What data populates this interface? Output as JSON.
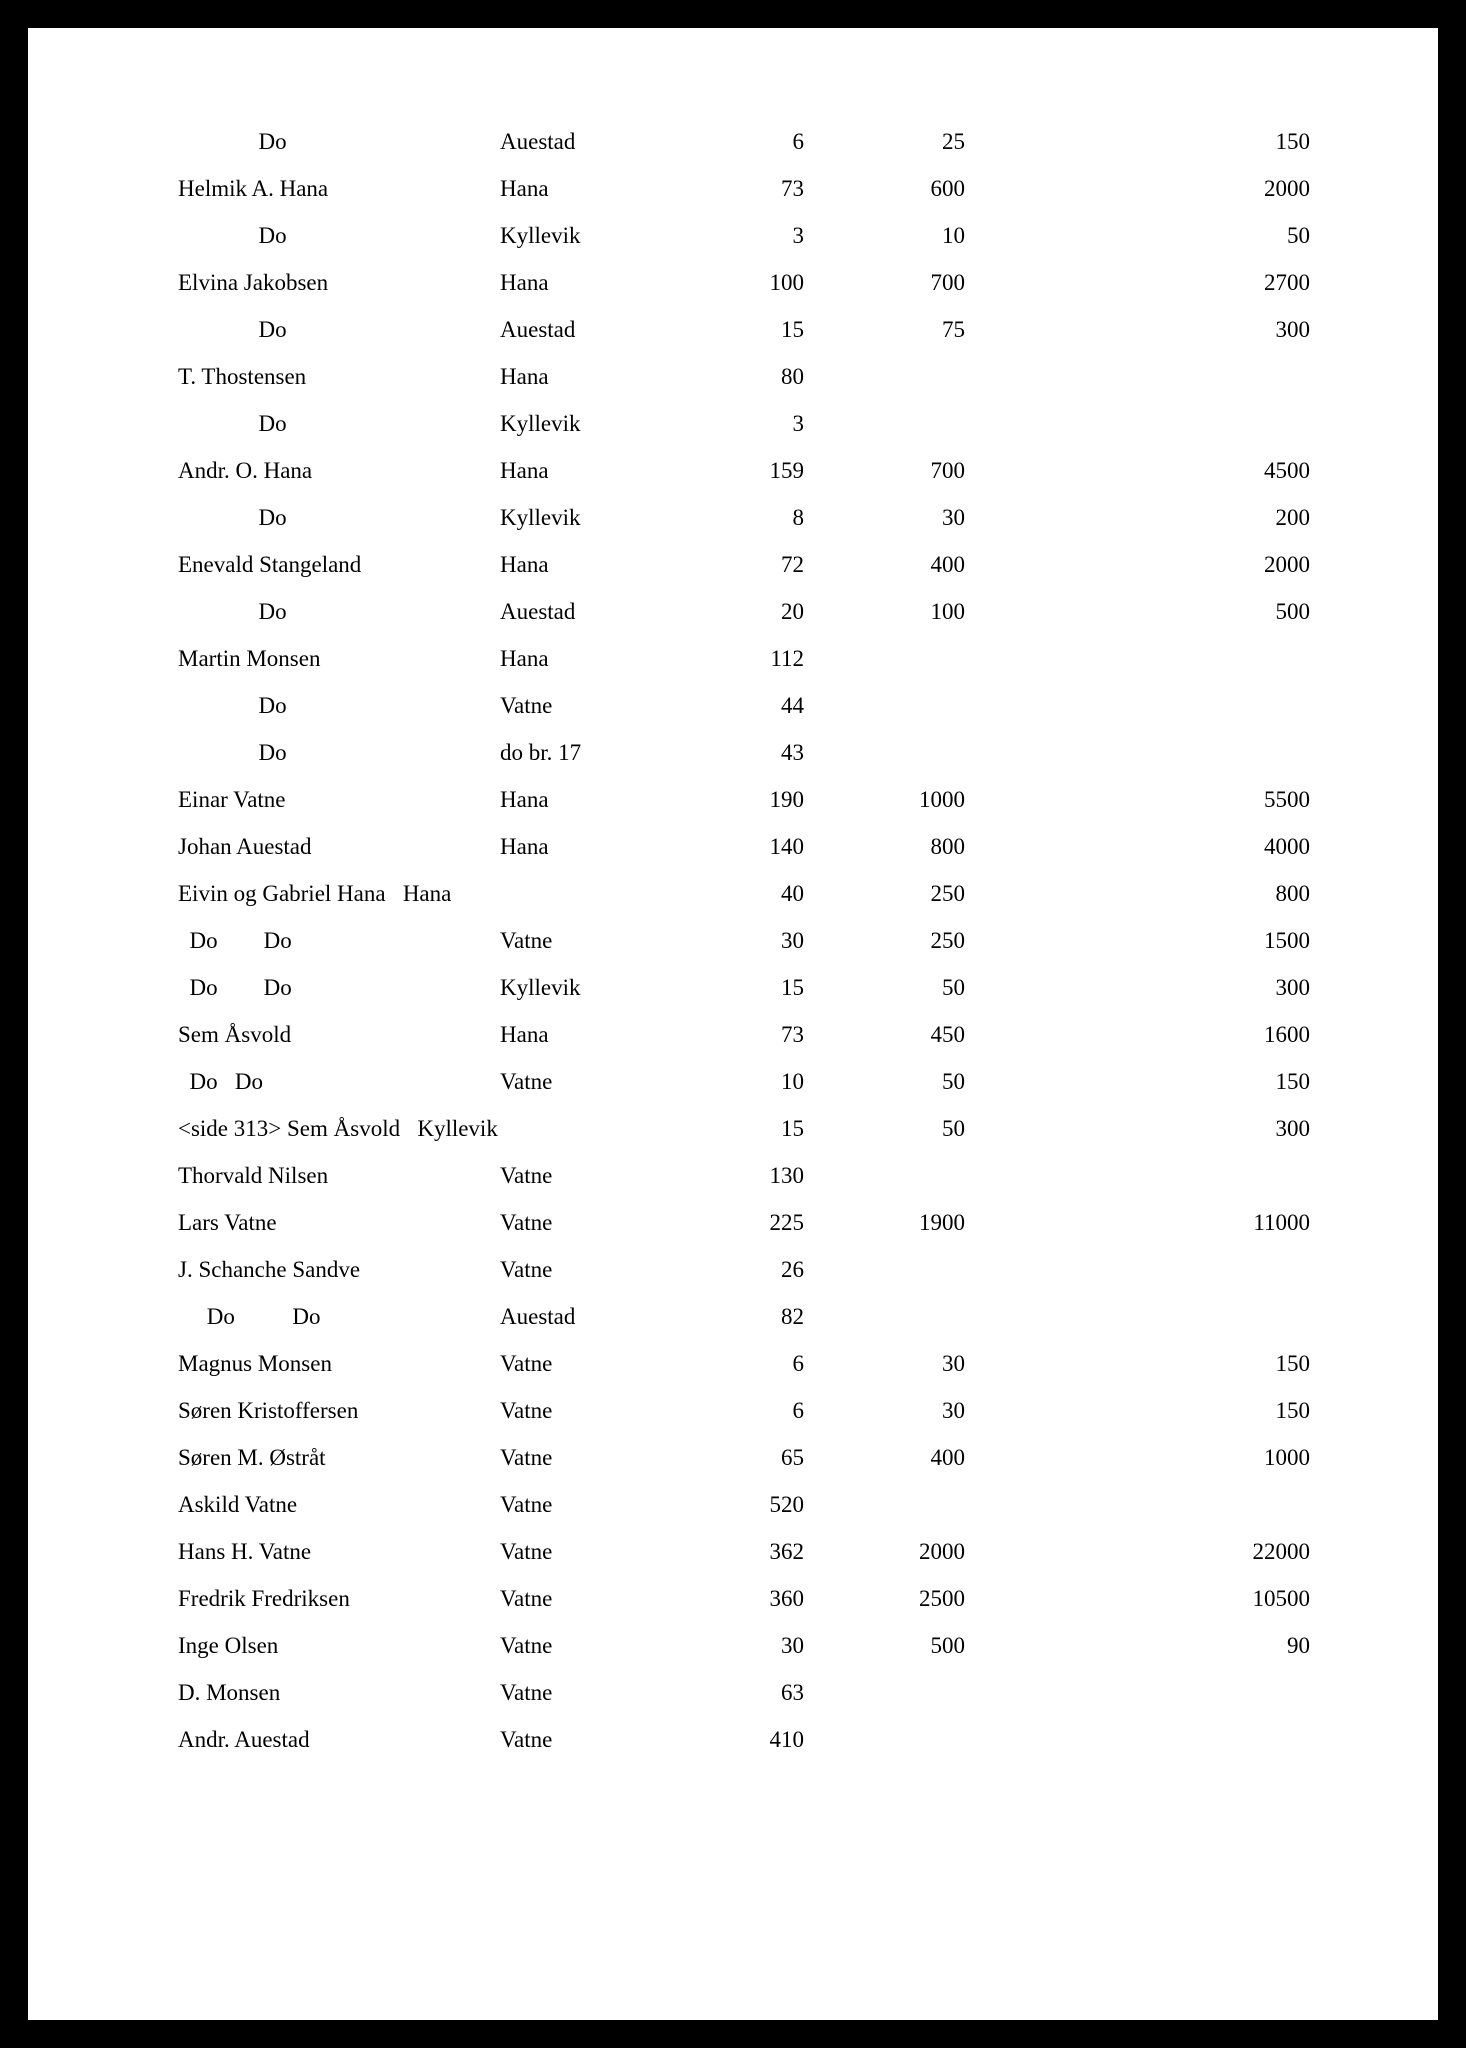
{
  "page": {
    "background_color": "#000000",
    "paper_color": "#ffffff",
    "font_family": "Times New Roman",
    "base_fontsize_pt": 17
  },
  "table": {
    "columns": [
      "name",
      "place",
      "v1",
      "v2",
      "v3"
    ],
    "col_widths_pct": [
      28,
      16,
      12,
      14,
      30
    ],
    "alignments": [
      "left",
      "left",
      "right",
      "right",
      "right"
    ],
    "rows": [
      {
        "name": "              Do",
        "place": "Auestad",
        "v1": "6",
        "v2": "25",
        "v3": "150"
      },
      {
        "name": "Helmik A. Hana",
        "place": "Hana",
        "v1": "73",
        "v2": "600",
        "v3": "2000"
      },
      {
        "name": "              Do",
        "place": "Kyllevik",
        "v1": "3",
        "v2": "10",
        "v3": "50"
      },
      {
        "name": "Elvina Jakobsen",
        "place": "Hana",
        "v1": "100",
        "v2": "700",
        "v3": "2700"
      },
      {
        "name": "              Do",
        "place": "Auestad",
        "v1": "15",
        "v2": "75",
        "v3": "300"
      },
      {
        "name": "T. Thostensen",
        "place": "Hana",
        "v1": "80",
        "v2": "",
        "v3": ""
      },
      {
        "name": "              Do",
        "place": "Kyllevik",
        "v1": "3",
        "v2": "",
        "v3": ""
      },
      {
        "name": "Andr. O. Hana",
        "place": "Hana",
        "v1": "159",
        "v2": "700",
        "v3": "4500"
      },
      {
        "name": "              Do",
        "place": "Kyllevik",
        "v1": "8",
        "v2": "30",
        "v3": "200"
      },
      {
        "name": "Enevald Stangeland",
        "place": "Hana",
        "v1": "72",
        "v2": "400",
        "v3": "2000"
      },
      {
        "name": "              Do",
        "place": "Auestad",
        "v1": "20",
        "v2": "100",
        "v3": "500"
      },
      {
        "name": "Martin Monsen",
        "place": "Hana",
        "v1": "112",
        "v2": "",
        "v3": ""
      },
      {
        "name": "              Do",
        "place": "Vatne",
        "v1": "44",
        "v2": "",
        "v3": ""
      },
      {
        "name": "              Do",
        "place": "do br. 17",
        "v1": "43",
        "v2": "",
        "v3": ""
      },
      {
        "name": "Einar Vatne",
        "place": "Hana",
        "v1": "190",
        "v2": "1000",
        "v3": "5500"
      },
      {
        "name": "Johan Auestad",
        "place": "Hana",
        "v1": "140",
        "v2": "800",
        "v3": "4000"
      },
      {
        "name": "Eivin og Gabriel Hana   Hana",
        "place": "",
        "v1": "40",
        "v2": "250",
        "v3": "800"
      },
      {
        "name": "  Do        Do",
        "place": "Vatne",
        "v1": "30",
        "v2": "250",
        "v3": "1500"
      },
      {
        "name": "  Do        Do",
        "place": "Kyllevik",
        "v1": "15",
        "v2": "50",
        "v3": "300"
      },
      {
        "name": "Sem Åsvold",
        "place": "Hana",
        "v1": "73",
        "v2": "450",
        "v3": "1600"
      },
      {
        "name": "  Do   Do",
        "place": "Vatne",
        "v1": "10",
        "v2": "50",
        "v3": "150"
      },
      {
        "name": "<side 313> Sem Åsvold   Kyllevik",
        "place": "",
        "v1": "15",
        "v2": "50",
        "v3": "300"
      },
      {
        "name": "Thorvald Nilsen",
        "place": "Vatne",
        "v1": "130",
        "v2": "",
        "v3": ""
      },
      {
        "name": "Lars Vatne",
        "place": "Vatne",
        "v1": "225",
        "v2": "1900",
        "v3": "11000"
      },
      {
        "name": "J. Schanche Sandve",
        "place": "Vatne",
        "v1": "26",
        "v2": "",
        "v3": ""
      },
      {
        "name": "     Do          Do",
        "place": "Auestad",
        "v1": "82",
        "v2": "",
        "v3": ""
      },
      {
        "name": "Magnus Monsen",
        "place": "Vatne",
        "v1": "6",
        "v2": "30",
        "v3": "150"
      },
      {
        "name": "Søren Kristoffersen",
        "place": "Vatne",
        "v1": "6",
        "v2": "30",
        "v3": "150"
      },
      {
        "name": "Søren M. Østråt",
        "place": "Vatne",
        "v1": "65",
        "v2": "400",
        "v3": "1000"
      },
      {
        "name": "Askild Vatne",
        "place": "Vatne",
        "v1": "520",
        "v2": "",
        "v3": ""
      },
      {
        "name": "Hans H. Vatne",
        "place": "Vatne",
        "v1": "362",
        "v2": "2000",
        "v3": "22000"
      },
      {
        "name": "Fredrik Fredriksen",
        "place": "Vatne",
        "v1": "360",
        "v2": "2500",
        "v3": "10500"
      },
      {
        "name": "Inge Olsen",
        "place": "Vatne",
        "v1": "30",
        "v2": "500",
        "v3": "90"
      },
      {
        "name": "D. Monsen",
        "place": "Vatne",
        "v1": "63",
        "v2": "",
        "v3": ""
      },
      {
        "name": "Andr. Auestad",
        "place": "Vatne",
        "v1": "410",
        "v2": "",
        "v3": ""
      }
    ]
  }
}
